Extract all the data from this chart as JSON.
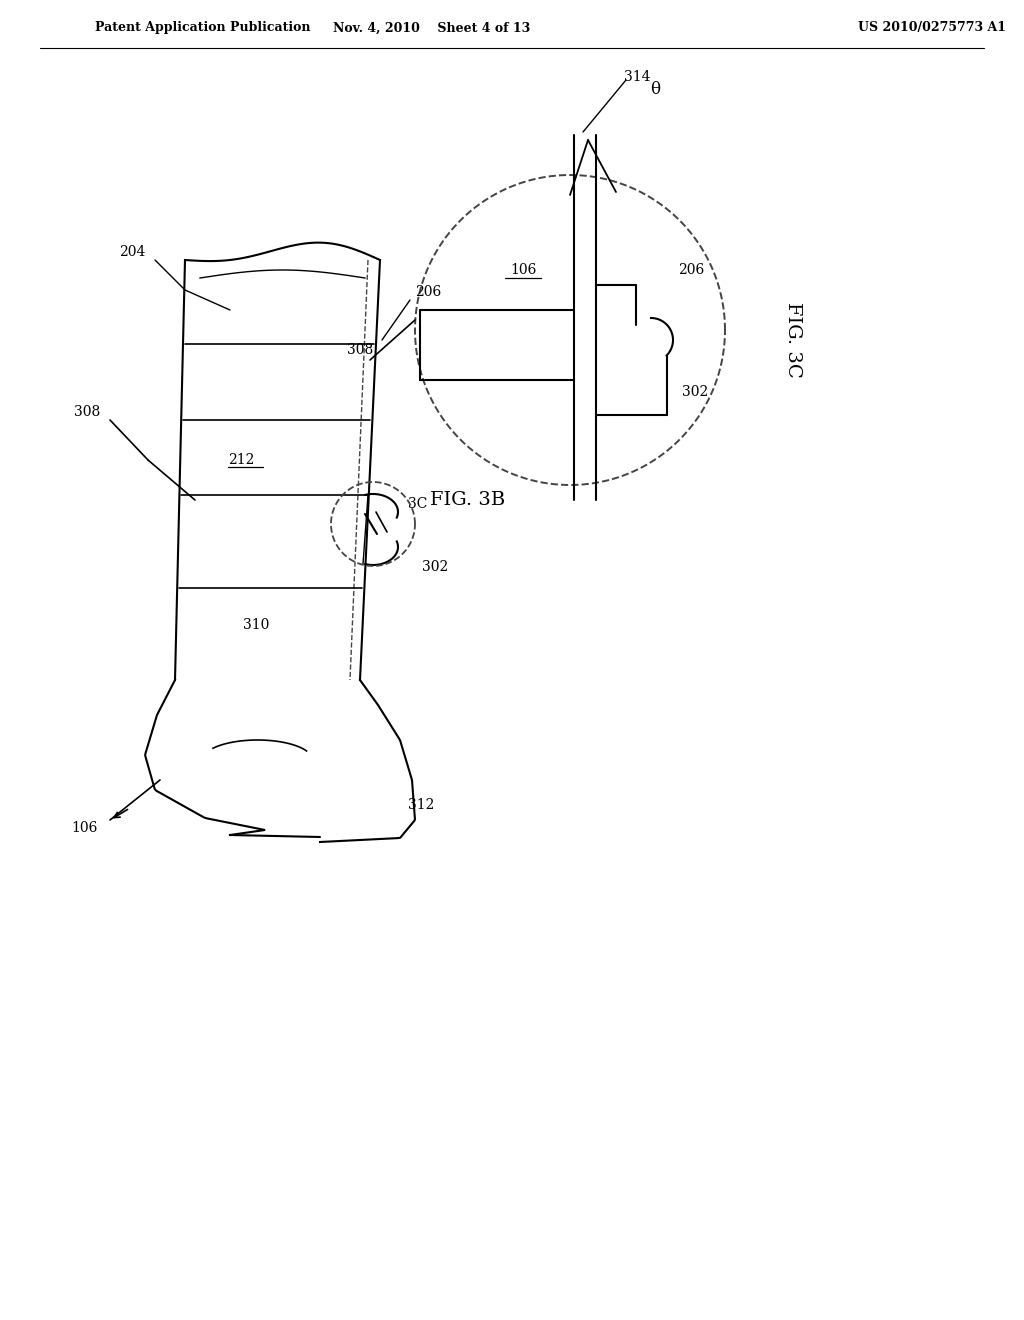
{
  "bg_color": "#ffffff",
  "header_left": "Patent Application Publication",
  "header_mid": "Nov. 4, 2010    Sheet 4 of 13",
  "header_right": "US 2010/0275773 A1",
  "fig3c_label": "FIG. 3C",
  "fig3b_label": "FIG. 3B",
  "line_color": "#000000",
  "dash_color": "#444444",
  "label_314": "314",
  "label_theta": "θ",
  "label_106_3c": "106",
  "label_206_3c": "206",
  "label_308_3c": "308",
  "label_302_3c": "302",
  "label_204": "204",
  "label_206_3b": "206",
  "label_212": "212",
  "label_3c_ref": "3C",
  "label_302_3b": "302",
  "label_308_3b": "308",
  "label_310": "310",
  "label_312": "312",
  "label_106_3b": "106"
}
